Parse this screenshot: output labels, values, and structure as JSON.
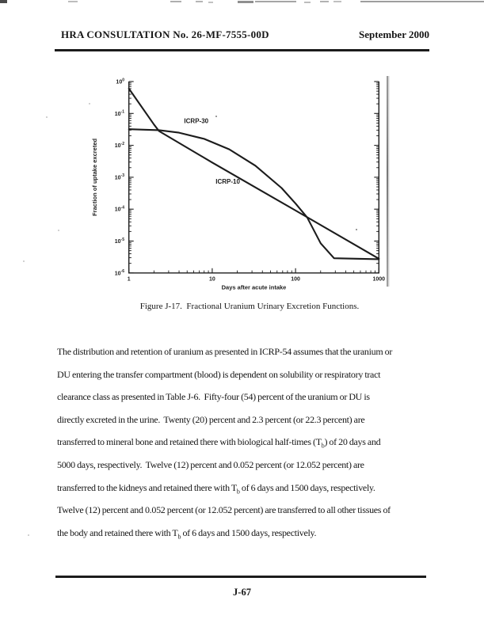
{
  "colors": {
    "ink": "#1c1c1c",
    "scan_gray": "#8a8a8a"
  },
  "header": {
    "left": "HRA CONSULTATION No. 26-MF-7555-00D",
    "right": "September 2000"
  },
  "figure": {
    "caption": "Figure J-17.  Fractional Uranium Urinary Excretion Functions."
  },
  "chart_data": {
    "type": "line",
    "title": "",
    "xlabel": "Days after acute intake",
    "ylabel": "Fraction of uptake excreted",
    "x_scale": "log",
    "y_scale": "log",
    "xlim": [
      1,
      1000
    ],
    "ylim": [
      1e-06,
      1
    ],
    "grid": false,
    "legend_position": "inline-labels",
    "x_ticks": [
      1,
      10,
      100,
      1000
    ],
    "y_tick_exponents": [
      0,
      -1,
      -2,
      -3,
      -4,
      -5,
      -6
    ],
    "series": [
      {
        "name": "ICRP-30",
        "label_at": [
          4.6,
          0.05
        ],
        "points": [
          [
            1,
            0.032
          ],
          [
            2.3,
            0.03
          ],
          [
            4,
            0.025
          ],
          [
            8,
            0.016
          ],
          [
            16,
            0.0075
          ],
          [
            33,
            0.0023
          ],
          [
            68,
            0.00046
          ],
          [
            100,
            0.00015
          ],
          [
            138,
            5.5e-05
          ],
          [
            200,
            8.5e-06
          ],
          [
            290,
            2.9e-06
          ],
          [
            1000,
            2.7e-06
          ]
        ]
      },
      {
        "name": "ICRP-10",
        "label_at": [
          11,
          0.00063
        ],
        "points": [
          [
            1,
            0.6
          ],
          [
            2,
            0.045
          ],
          [
            2.3,
            0.028
          ],
          [
            10,
            0.0029
          ],
          [
            100,
            9.1e-05
          ],
          [
            1000,
            2.8e-06
          ]
        ]
      }
    ]
  },
  "body": {
    "lines": [
      "The distribution and retention of uranium as presented in ICRP-54 assumes that the uranium or",
      "DU entering the transfer compartment (blood) is dependent on solubility or respiratory tract",
      "clearance class as presented in Table J-6.  Fifty-four (54) percent of the uranium or DU is",
      "directly excreted in the urine.  Twenty (20) percent and 2.3 percent (or 22.3 percent) are",
      "transferred to mineral bone and retained there with biological half-times (T~b~) of 20 days and",
      "5000 days, respectively.  Twelve (12) percent and 0.052 percent (or 12.052 percent) are",
      "transferred to the kidneys and retained there with T~b~ of 6 days and 1500 days, respectively.",
      "Twelve (12) percent and 0.052 percent (or 12.052 percent) are transferred to all other tissues of",
      "the body and retained there with T~b~ of 6 days and 1500 days, respectively."
    ]
  },
  "footer": {
    "page_number": "J-67"
  }
}
